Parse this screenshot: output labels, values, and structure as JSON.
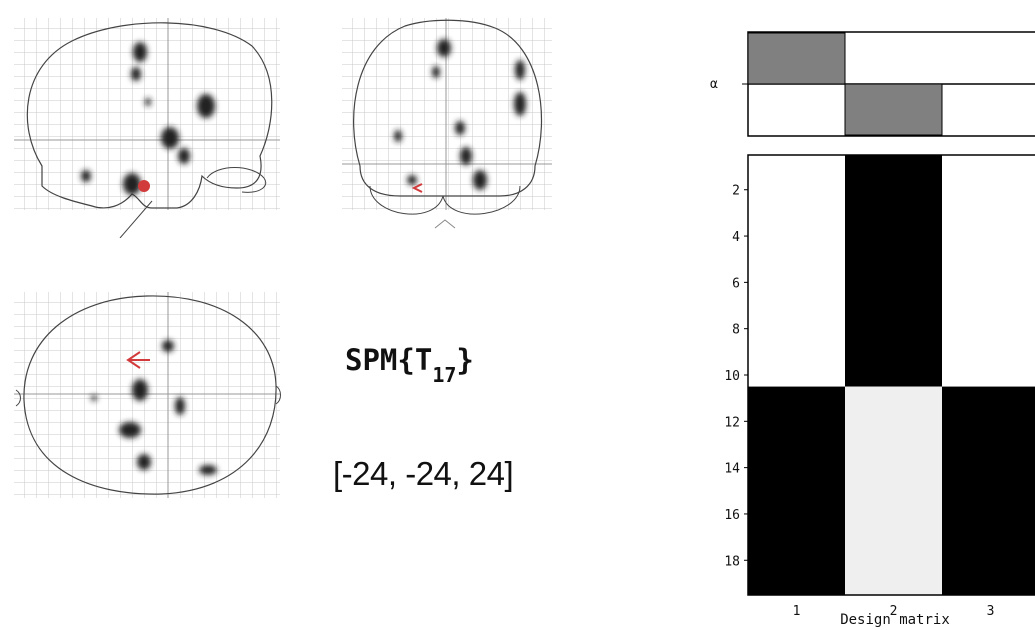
{
  "statistic": {
    "label": "SPM{T",
    "df": "17",
    "close": "}"
  },
  "coordinates": "[-24, -24, 24]",
  "contrast": {
    "axis_label": "α",
    "weights": [
      1,
      -1,
      0
    ]
  },
  "design_matrix": {
    "title": "Design matrix",
    "column_ticks": [
      "1",
      "2",
      "3"
    ],
    "row_ticks": [
      "2",
      "4",
      "6",
      "8",
      "10",
      "12",
      "14",
      "16",
      "18"
    ],
    "rows": 19,
    "rows_part1": 10,
    "colors": {
      "black": "#000000",
      "white": "#ffffff",
      "light": "#efefef",
      "contrast_bar": "#808080"
    }
  },
  "glass_brain": {
    "views": [
      "sagittal",
      "coronal",
      "axial"
    ],
    "cursor_color": "#d23b3b",
    "blob_color": "#222222"
  }
}
